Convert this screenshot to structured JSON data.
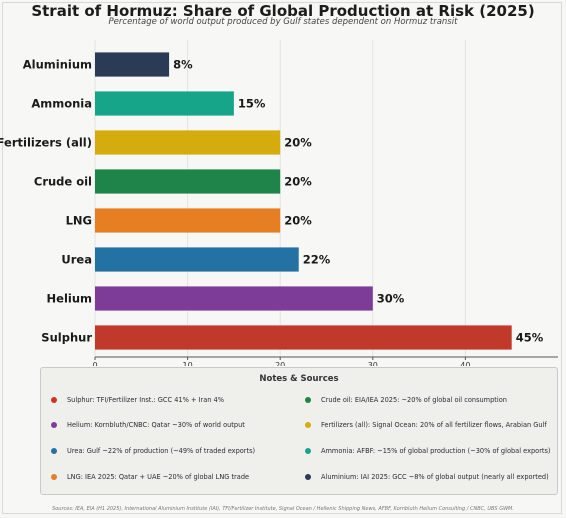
{
  "chart_data": {
    "type": "bar",
    "orientation": "horizontal",
    "title": "Strait of Hormuz: Share of Global Production at Risk (2025)",
    "subtitle": "Percentage of world output produced by Gulf states dependent on Hormuz transit",
    "categories": [
      "Aluminium",
      "Ammonia",
      "Fertilizers (all)",
      "Crude oil",
      "LNG",
      "Urea",
      "Helium",
      "Sulphur"
    ],
    "values": [
      8,
      15,
      20,
      20,
      20,
      22,
      30,
      45
    ],
    "data_labels": [
      "8%",
      "15%",
      "20%",
      "20%",
      "20%",
      "22%",
      "30%",
      "45%"
    ],
    "colors": [
      "#2b3a55",
      "#17a589",
      "#d4ac0d",
      "#1e8449",
      "#e67e22",
      "#2471a3",
      "#7d3c98",
      "#c0392b"
    ],
    "xlim": [
      0,
      50
    ],
    "xticks": [
      0,
      10,
      20,
      30,
      40
    ],
    "grid": true,
    "xlabel": "",
    "ylabel": ""
  },
  "notes": {
    "title": "Notes & Sources",
    "items": [
      {
        "text": "Sulphur:  TFI/Fertilizer Inst.: GCC 41% + Iran 4%",
        "color": "#c0392b"
      },
      {
        "text": "Crude oil:  EIA/IEA 2025: ~20% of global oil consumption",
        "color": "#1e8449"
      },
      {
        "text": "Helium:  Kornbluth/CNBC: Qatar ~30% of world output",
        "color": "#7d3c98"
      },
      {
        "text": "Fertilizers (all):  Signal Ocean: 20% of all fertilizer flows, Arabian Gulf",
        "color": "#d4ac0d"
      },
      {
        "text": "Urea:  Gulf ~22% of production (~49% of traded exports)",
        "color": "#2471a3"
      },
      {
        "text": "Ammonia:  AFBF: ~15% of global production (~30% of global exports)",
        "color": "#17a589"
      },
      {
        "text": "LNG:  IEA 2025: Qatar + UAE ~20% of global LNG trade",
        "color": "#e67e22"
      },
      {
        "text": "Aluminium:  IAI 2025: GCC ~8% of global output (nearly all exported)",
        "color": "#2b3a55"
      }
    ]
  },
  "footer": "Sources: IEA, EIA (H1 2025), International Aluminium Institute (IAI), TFI/Fertilizer Institute, Signal Ocean / Hellenic Shipping News, AFBF, Kornbluth Helium Consulting / CNBC, UBS GWM."
}
